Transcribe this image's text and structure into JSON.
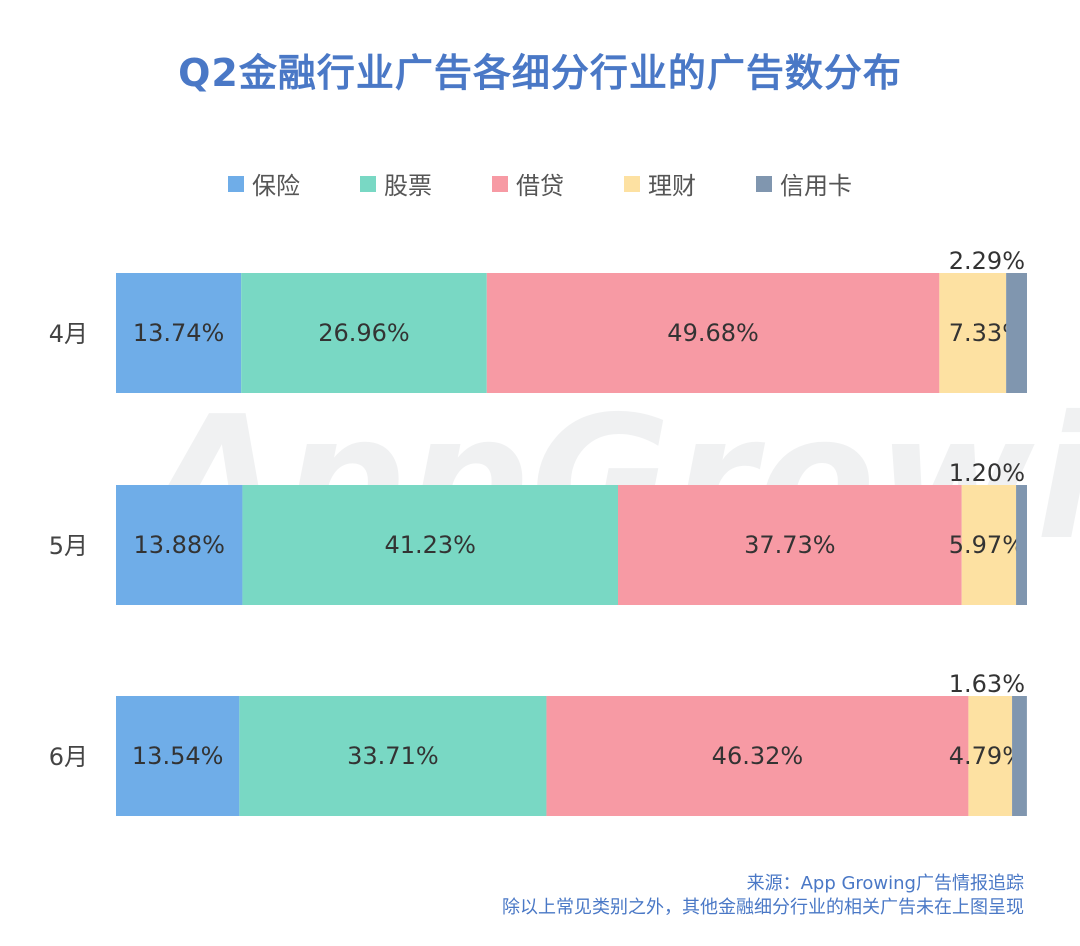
{
  "chart_data": {
    "type": "bar",
    "orientation": "horizontal",
    "stacked": true,
    "title": "Q2金融行业广告各细分行业的广告数分布",
    "categories": [
      "4月",
      "5月",
      "6月"
    ],
    "series": [
      {
        "name": "保险",
        "color": "#6fade8",
        "values": [
          13.74,
          13.88,
          13.54
        ],
        "labels": [
          "13.74%",
          "13.88%",
          "13.54%"
        ]
      },
      {
        "name": "股票",
        "color": "#79d8c4",
        "values": [
          26.96,
          41.23,
          33.71
        ],
        "labels": [
          "26.96%",
          "41.23%",
          "33.71%"
        ]
      },
      {
        "name": "借贷",
        "color": "#f79aa4",
        "values": [
          49.68,
          37.73,
          46.32
        ],
        "labels": [
          "49.68%",
          "37.73%",
          "46.32%"
        ]
      },
      {
        "name": "理财",
        "color": "#fde1a2",
        "values": [
          7.33,
          5.97,
          4.79
        ],
        "labels": [
          "7.33%",
          "5.97%",
          "4.79%"
        ]
      },
      {
        "name": "信用卡",
        "color": "#8096af",
        "values": [
          2.29,
          1.2,
          1.63
        ],
        "labels": [
          "2.29%",
          "1.20%",
          "1.63%"
        ]
      }
    ],
    "xlim": [
      0,
      100
    ],
    "legend_position": "top"
  },
  "watermark": "AppGrowing",
  "source": {
    "line1": "来源：App Growing广告情报追踪",
    "line2": "除以上常见类别之外，其他金融细分行业的相关广告未在上图呈现"
  }
}
